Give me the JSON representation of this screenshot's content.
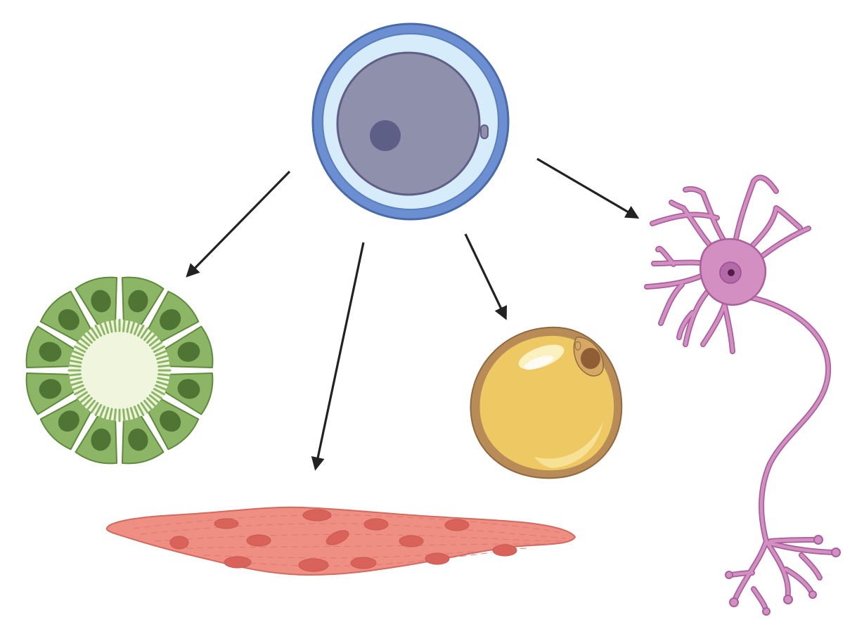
{
  "diagram": {
    "title": "",
    "nodes": [
      {
        "id": "stem-cell",
        "label": ""
      },
      {
        "id": "epithelial-cells",
        "label": ""
      },
      {
        "id": "smooth-muscle-cell",
        "label": ""
      },
      {
        "id": "fat-cell",
        "label": ""
      },
      {
        "id": "neuron",
        "label": ""
      }
    ],
    "edges": [
      {
        "from": "stem-cell",
        "to": "epithelial-cells"
      },
      {
        "from": "stem-cell",
        "to": "smooth-muscle-cell"
      },
      {
        "from": "stem-cell",
        "to": "fat-cell"
      },
      {
        "from": "stem-cell",
        "to": "neuron"
      }
    ]
  },
  "colors": {
    "arrow": "#222222",
    "stem_outer_ring": "#6b8fd0",
    "stem_inner_ring": "#d6ecfb",
    "stem_cytoplasm": "#8f90ab",
    "stem_nucleus": "#5d5f86",
    "epithelial_cell": "#8cb566",
    "epithelial_nucleus": "#4f7434",
    "epithelial_lumen": "#eff6dd",
    "muscle_cell": "#ef8e82",
    "muscle_nucleus": "#d9625a",
    "fat_cell": "#eec963",
    "fat_membrane": "#b98b57",
    "neuron_body": "#d38ec2",
    "neuron_outline": "#a9609a",
    "neuron_nucleus": "#9a4f92"
  }
}
